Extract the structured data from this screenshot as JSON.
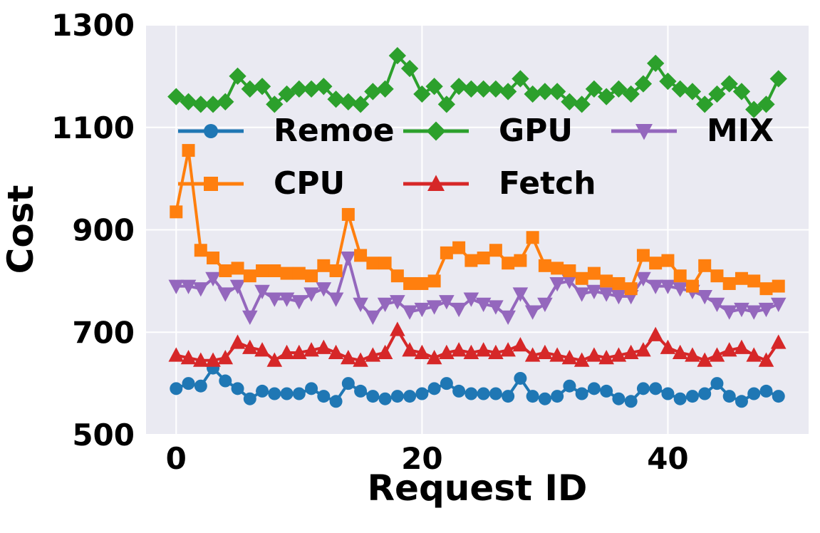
{
  "chart_data": {
    "type": "line",
    "title": "",
    "xlabel": "Request ID",
    "ylabel": "Cost",
    "xlim": [
      -2.45,
      51.45
    ],
    "ylim": [
      500,
      1300
    ],
    "xticks": [
      0,
      20,
      40
    ],
    "yticks": [
      500,
      700,
      900,
      1100,
      1300
    ],
    "grid": true,
    "plot_bg": "#eaeaf2",
    "grid_color": "#ffffff",
    "legend_position": "upper-left-inside",
    "x": [
      0,
      1,
      2,
      3,
      4,
      5,
      6,
      7,
      8,
      9,
      10,
      11,
      12,
      13,
      14,
      15,
      16,
      17,
      18,
      19,
      20,
      21,
      22,
      23,
      24,
      25,
      26,
      27,
      28,
      29,
      30,
      31,
      32,
      33,
      34,
      35,
      36,
      37,
      38,
      39,
      40,
      41,
      42,
      43,
      44,
      45,
      46,
      47,
      48,
      49
    ],
    "series": [
      {
        "name": "Remoe",
        "color": "#1f77b4",
        "marker": "circle",
        "values": [
          590,
          600,
          595,
          630,
          605,
          590,
          570,
          585,
          580,
          580,
          580,
          590,
          575,
          565,
          600,
          585,
          575,
          570,
          575,
          575,
          580,
          590,
          600,
          585,
          580,
          580,
          580,
          575,
          610,
          575,
          570,
          575,
          595,
          580,
          590,
          585,
          570,
          565,
          590,
          590,
          580,
          570,
          575,
          580,
          600,
          575,
          565,
          580,
          585,
          575
        ]
      },
      {
        "name": "GPU",
        "color": "#2ca02c",
        "marker": "diamond",
        "values": [
          1160,
          1150,
          1145,
          1145,
          1150,
          1200,
          1175,
          1180,
          1145,
          1165,
          1175,
          1175,
          1180,
          1155,
          1150,
          1145,
          1170,
          1175,
          1240,
          1215,
          1165,
          1180,
          1145,
          1180,
          1175,
          1175,
          1175,
          1170,
          1195,
          1165,
          1170,
          1170,
          1150,
          1145,
          1175,
          1160,
          1175,
          1165,
          1185,
          1225,
          1190,
          1175,
          1170,
          1145,
          1165,
          1185,
          1170,
          1135,
          1145,
          1195
        ]
      },
      {
        "name": "MIX",
        "color": "#9467bd",
        "marker": "triangle-down",
        "values": [
          790,
          790,
          785,
          805,
          775,
          790,
          730,
          780,
          765,
          765,
          760,
          775,
          785,
          765,
          845,
          755,
          730,
          755,
          760,
          740,
          745,
          750,
          760,
          745,
          765,
          755,
          750,
          730,
          775,
          740,
          755,
          795,
          800,
          775,
          780,
          775,
          770,
          770,
          805,
          790,
          790,
          785,
          780,
          770,
          755,
          740,
          745,
          740,
          745,
          755
        ]
      },
      {
        "name": "CPU",
        "color": "#ff7f0e",
        "marker": "square",
        "values": [
          935,
          1055,
          860,
          845,
          820,
          825,
          810,
          820,
          820,
          815,
          815,
          810,
          830,
          820,
          930,
          850,
          835,
          835,
          810,
          795,
          795,
          800,
          855,
          865,
          840,
          845,
          860,
          835,
          840,
          885,
          830,
          825,
          820,
          805,
          815,
          800,
          795,
          785,
          850,
          835,
          840,
          810,
          790,
          830,
          810,
          795,
          805,
          800,
          785,
          790
        ]
      },
      {
        "name": "Fetch",
        "color": "#d62728",
        "marker": "triangle-up",
        "values": [
          655,
          650,
          645,
          645,
          650,
          680,
          670,
          665,
          645,
          660,
          660,
          665,
          670,
          660,
          650,
          645,
          655,
          660,
          705,
          665,
          660,
          650,
          660,
          665,
          660,
          665,
          660,
          665,
          675,
          655,
          660,
          655,
          650,
          645,
          655,
          650,
          655,
          660,
          665,
          695,
          670,
          660,
          655,
          645,
          655,
          665,
          670,
          655,
          645,
          680
        ]
      }
    ]
  }
}
